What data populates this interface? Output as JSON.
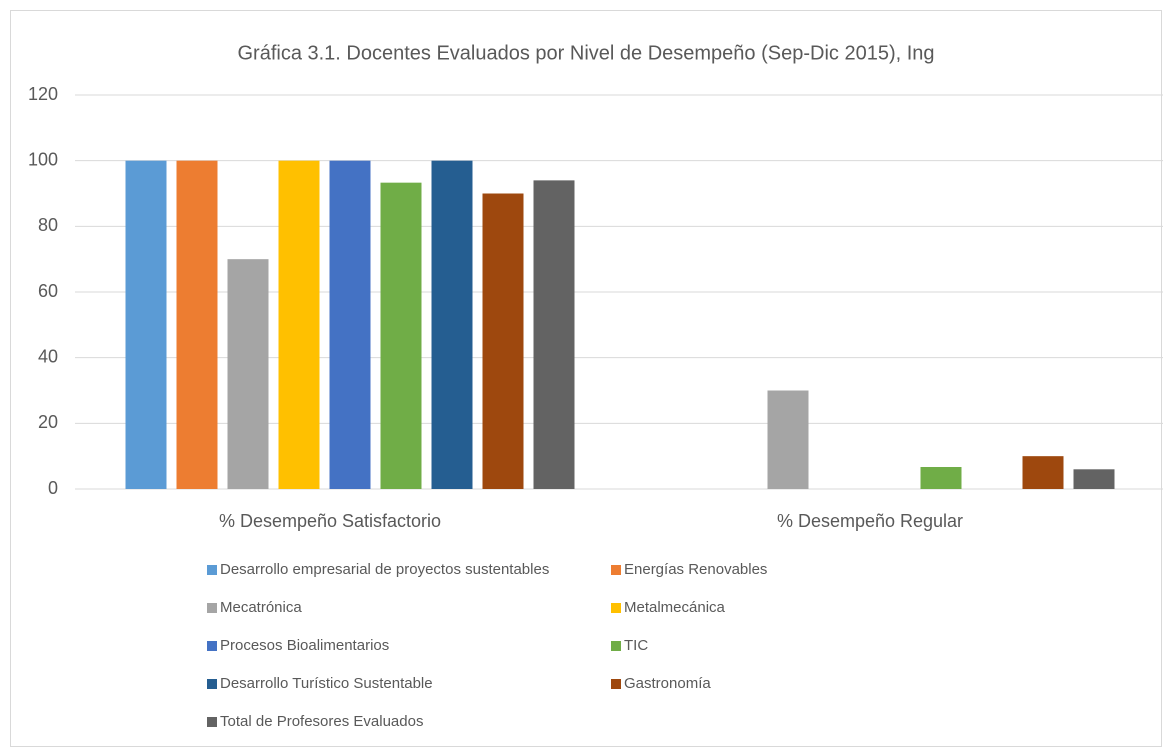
{
  "chart_data": {
    "type": "bar",
    "title": "Gráfica 3.1. Docentes Evaluados por Nivel de Desempeño (Sep-Dic 2015), Ing",
    "categories": [
      "% Desempeño Satisfactorio",
      "% Desempeño Regular"
    ],
    "series": [
      {
        "name": "Desarrollo empresarial de proyectos sustentables",
        "color": "#5b9bd5",
        "values": [
          100,
          0
        ]
      },
      {
        "name": "Energías Renovables",
        "color": "#ed7d31",
        "values": [
          100,
          0
        ]
      },
      {
        "name": "Mecatrónica",
        "color": "#a5a5a5",
        "values": [
          70,
          30
        ]
      },
      {
        "name": "Metalmecánica",
        "color": "#ffc000",
        "values": [
          100,
          0
        ]
      },
      {
        "name": "Procesos Bioalimentarios",
        "color": "#4472c4",
        "values": [
          100,
          0
        ]
      },
      {
        "name": "TIC",
        "color": "#70ad47",
        "values": [
          93.3,
          6.7
        ]
      },
      {
        "name": "Desarrollo Turístico Sustentable",
        "color": "#255e91",
        "values": [
          100,
          0
        ]
      },
      {
        "name": "Gastronomía",
        "color": "#9e480e",
        "values": [
          90,
          10
        ]
      },
      {
        "name": "Total de Profesores Evaluados",
        "color": "#636363",
        "values": [
          94,
          6
        ]
      }
    ],
    "ylim": [
      0,
      120
    ],
    "yticks": [
      0,
      20,
      40,
      60,
      80,
      100,
      120
    ],
    "grid": true,
    "legend": "bottom"
  }
}
